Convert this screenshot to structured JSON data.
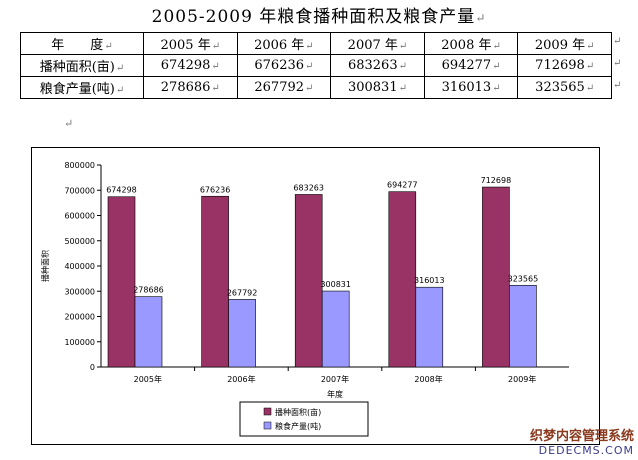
{
  "document": {
    "title": "2005-2009 年粮食播种面积及粮食产量",
    "paragraph_mark": "↵",
    "table": {
      "header_label": "年　　度",
      "years": [
        "2005 年",
        "2006 年",
        "2007 年",
        "2008 年",
        "2009 年"
      ],
      "rows": [
        {
          "label": "播种面积(亩)",
          "values": [
            "674298",
            "676236",
            "683263",
            "694277",
            "712698"
          ]
        },
        {
          "label": "粮食产量(吨)",
          "values": [
            "278686",
            "267792",
            "300831",
            "316013",
            "323565"
          ]
        }
      ]
    }
  },
  "chart_data": {
    "type": "bar",
    "categories": [
      "2005年",
      "2006年",
      "2007年",
      "2008年",
      "2009年"
    ],
    "series": [
      {
        "name": "播种面积(亩)",
        "values": [
          674298,
          676236,
          683263,
          694277,
          712698
        ],
        "color": "#993366"
      },
      {
        "name": "粮食产量(吨)",
        "values": [
          278686,
          267792,
          300831,
          316013,
          323565
        ],
        "color": "#9999ff"
      }
    ],
    "data_labels": [
      [
        "674298",
        "676236",
        "683263",
        "694277",
        "712698"
      ],
      [
        "278686",
        "267792",
        "300831",
        "316013",
        "323565"
      ]
    ],
    "xlabel": "年度",
    "ylabel": "播种面积",
    "ylim": [
      0,
      800000
    ],
    "yticks": [
      0,
      100000,
      200000,
      300000,
      400000,
      500000,
      600000,
      700000,
      800000
    ],
    "ytick_labels": [
      "0",
      "100000",
      "200000",
      "300000",
      "400000",
      "500000",
      "600000",
      "700000",
      "800000"
    ],
    "grid": false,
    "legend_position": "bottom"
  },
  "watermark": {
    "line1": "织梦内容管理系统",
    "line2": "DEDECMS.COM"
  }
}
